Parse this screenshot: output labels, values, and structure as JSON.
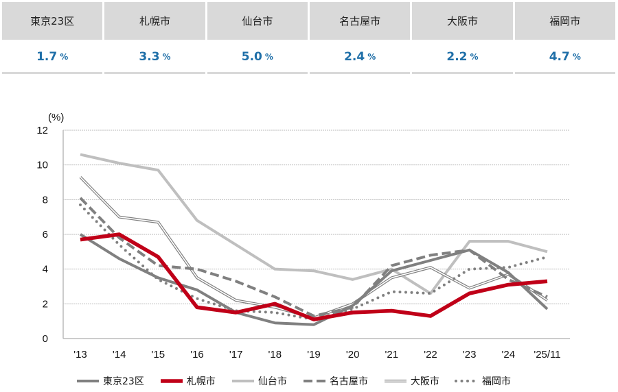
{
  "table": [
    {
      "city": "東京23区",
      "value": "1.7",
      "unit": "%"
    },
    {
      "city": "札幌市",
      "value": "3.3",
      "unit": "%"
    },
    {
      "city": "仙台市",
      "value": "5.0",
      "unit": "%"
    },
    {
      "city": "名古屋市",
      "value": "2.4",
      "unit": "%"
    },
    {
      "city": "大阪市",
      "value": "2.2",
      "unit": "%"
    },
    {
      "city": "福岡市",
      "value": "4.7",
      "unit": "%"
    }
  ],
  "chart_data": {
    "type": "line",
    "ylabel": "(%)",
    "ylim": [
      0,
      12
    ],
    "yticks": [
      0,
      2,
      4,
      6,
      8,
      10,
      12
    ],
    "grid": true,
    "legend_placement": "bottom",
    "categories": [
      "'13",
      "'14",
      "'15",
      "'16",
      "'17",
      "'18",
      "'19",
      "'20",
      "'21",
      "'22",
      "'23",
      "'24",
      "'25/11"
    ],
    "series": [
      {
        "name": "東京23区",
        "color": "#808080",
        "style": "solid",
        "values": [
          6.0,
          4.6,
          3.5,
          2.8,
          1.5,
          0.9,
          0.8,
          1.9,
          3.9,
          4.5,
          5.1,
          3.8,
          1.7
        ]
      },
      {
        "name": "札幌市",
        "color": "#c00018",
        "style": "thick",
        "values": [
          5.7,
          6.0,
          4.7,
          1.8,
          1.5,
          2.0,
          1.1,
          1.5,
          1.6,
          1.3,
          2.6,
          3.1,
          3.3
        ]
      },
      {
        "name": "仙台市",
        "color": "#bfbfbf",
        "style": "solid",
        "values": [
          10.6,
          10.1,
          9.7,
          6.8,
          5.4,
          4.0,
          3.9,
          3.4,
          4.0,
          2.6,
          5.6,
          5.6,
          5.0
        ]
      },
      {
        "name": "名古屋市",
        "color": "#808080",
        "style": "dashed",
        "values": [
          8.1,
          5.8,
          4.2,
          4.0,
          3.3,
          2.4,
          1.3,
          1.8,
          4.2,
          4.8,
          5.1,
          3.4,
          2.4
        ]
      },
      {
        "name": "大阪市",
        "color": "#808080",
        "style": "double",
        "values": [
          9.3,
          7.0,
          6.7,
          3.5,
          2.2,
          1.8,
          1.2,
          2.0,
          3.5,
          4.1,
          2.9,
          3.7,
          2.2
        ]
      },
      {
        "name": "福岡市",
        "color": "#808080",
        "style": "dotted",
        "values": [
          7.7,
          5.4,
          3.4,
          2.3,
          1.6,
          1.5,
          1.1,
          1.7,
          2.7,
          2.6,
          4.0,
          4.1,
          4.7
        ]
      }
    ]
  }
}
